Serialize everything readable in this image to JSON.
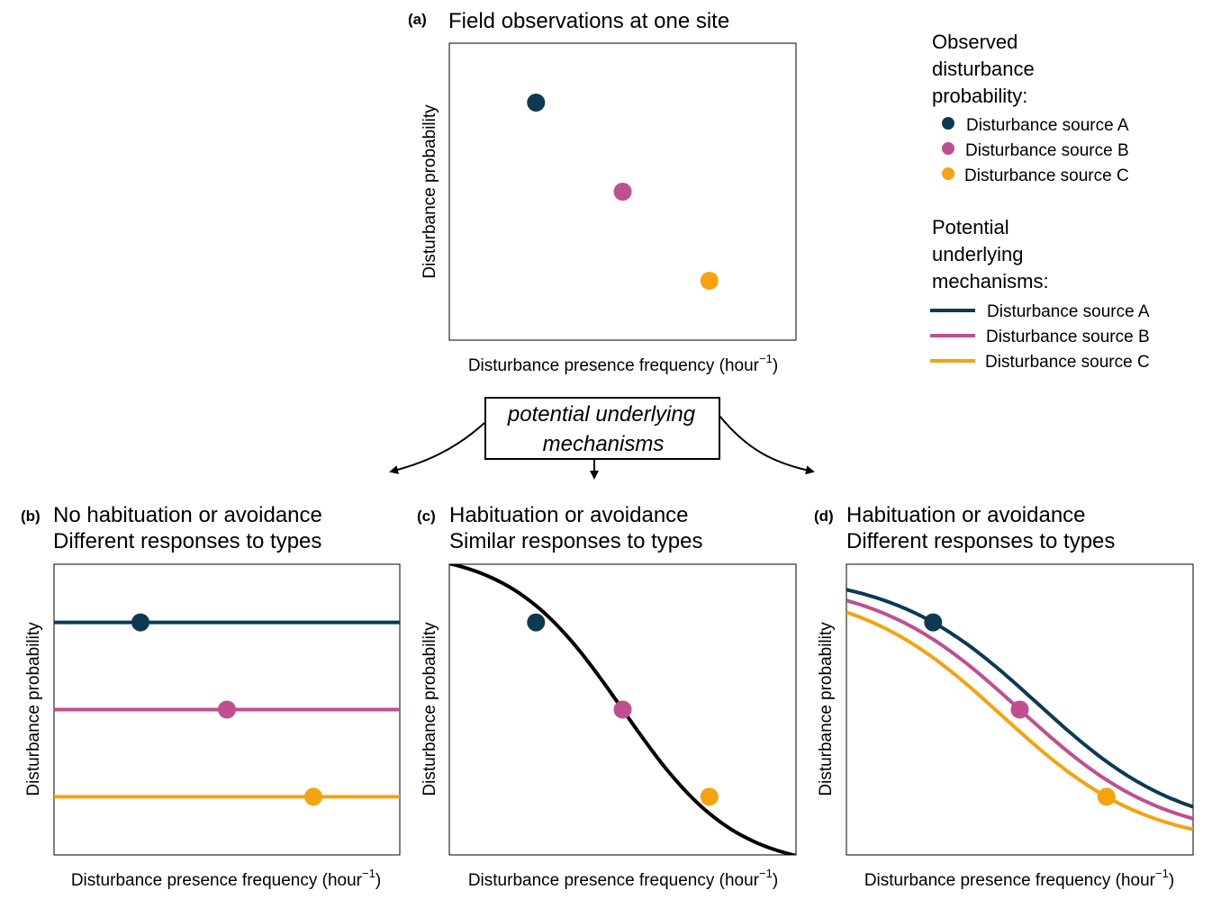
{
  "colors": {
    "A": "#0d3a52",
    "B": "#bf4f91",
    "C": "#f5a30f",
    "neutral": "#000000"
  },
  "panels": {
    "a": {
      "tag": "(a)",
      "title": "Field observations at one site"
    },
    "b": {
      "tag": "(b)",
      "title_1": "No habituation or avoidance",
      "title_2": "Different responses to types"
    },
    "c": {
      "tag": "(c)",
      "title_1": "Habituation or avoidance",
      "title_2": "Similar responses to types"
    },
    "d": {
      "tag": "(d)",
      "title_1": "Habituation or avoidance",
      "title_2": "Different responses to types"
    }
  },
  "axes": {
    "xlabel": "Disturbance presence frequency (hour",
    "xlabel_sup": "−1",
    "xlabel_close": ")",
    "ylabel": "Disturbance probability"
  },
  "mechanisms_box": {
    "line1": "potential underlying",
    "line2": "mechanisms"
  },
  "legend": {
    "observed": {
      "heading_1": "Observed",
      "heading_2": "disturbance",
      "heading_3": "probability:",
      "items": [
        "Disturbance source A",
        "Disturbance source B",
        "Disturbance source C"
      ]
    },
    "mechanisms": {
      "heading_1": "Potential",
      "heading_2": "underlying",
      "heading_3": "mechanisms:",
      "items": [
        "Disturbance source A",
        "Disturbance source B",
        "Disturbance source C"
      ]
    }
  },
  "chart_data": [
    {
      "panel": "a",
      "type": "scatter",
      "xlim": [
        0,
        1
      ],
      "ylim": [
        0,
        1
      ],
      "points": [
        {
          "series": "A",
          "x": 0.25,
          "y": 0.8
        },
        {
          "series": "B",
          "x": 0.5,
          "y": 0.5
        },
        {
          "series": "C",
          "x": 0.75,
          "y": 0.2
        }
      ]
    },
    {
      "panel": "b",
      "type": "line",
      "xlim": [
        0,
        1
      ],
      "ylim": [
        0,
        1
      ],
      "series": [
        {
          "series": "A",
          "model": "constant",
          "level": 0.8
        },
        {
          "series": "B",
          "model": "constant",
          "level": 0.5
        },
        {
          "series": "C",
          "model": "constant",
          "level": 0.2
        }
      ],
      "points": [
        {
          "series": "A",
          "x": 0.25,
          "y": 0.8
        },
        {
          "series": "B",
          "x": 0.5,
          "y": 0.5
        },
        {
          "series": "C",
          "x": 0.75,
          "y": 0.2
        }
      ]
    },
    {
      "panel": "c",
      "type": "line",
      "xlim": [
        0,
        1
      ],
      "ylim": [
        0,
        1
      ],
      "series": [
        {
          "series": "neutral",
          "model": "logistic",
          "mid": 0.5,
          "k": 6.2,
          "shift": 0
        }
      ],
      "points": [
        {
          "series": "A",
          "x": 0.25,
          "y": 0.8
        },
        {
          "series": "B",
          "x": 0.5,
          "y": 0.5
        },
        {
          "series": "C",
          "x": 0.75,
          "y": 0.2
        }
      ]
    },
    {
      "panel": "d",
      "type": "line",
      "xlim": [
        0,
        1
      ],
      "ylim": [
        0,
        1
      ],
      "series": [
        {
          "series": "A",
          "model": "logistic",
          "mid": 0.55,
          "k": 4.8,
          "anchor_x": 0.25,
          "anchor_y": 0.8
        },
        {
          "series": "B",
          "model": "logistic",
          "mid": 0.5,
          "k": 4.8,
          "anchor_x": 0.5,
          "anchor_y": 0.5
        },
        {
          "series": "C",
          "model": "logistic",
          "mid": 0.45,
          "k": 4.8,
          "anchor_x": 0.75,
          "anchor_y": 0.2
        }
      ],
      "points": [
        {
          "series": "A",
          "x": 0.25,
          "y": 0.8
        },
        {
          "series": "B",
          "x": 0.5,
          "y": 0.5
        },
        {
          "series": "C",
          "x": 0.75,
          "y": 0.2
        }
      ]
    }
  ]
}
